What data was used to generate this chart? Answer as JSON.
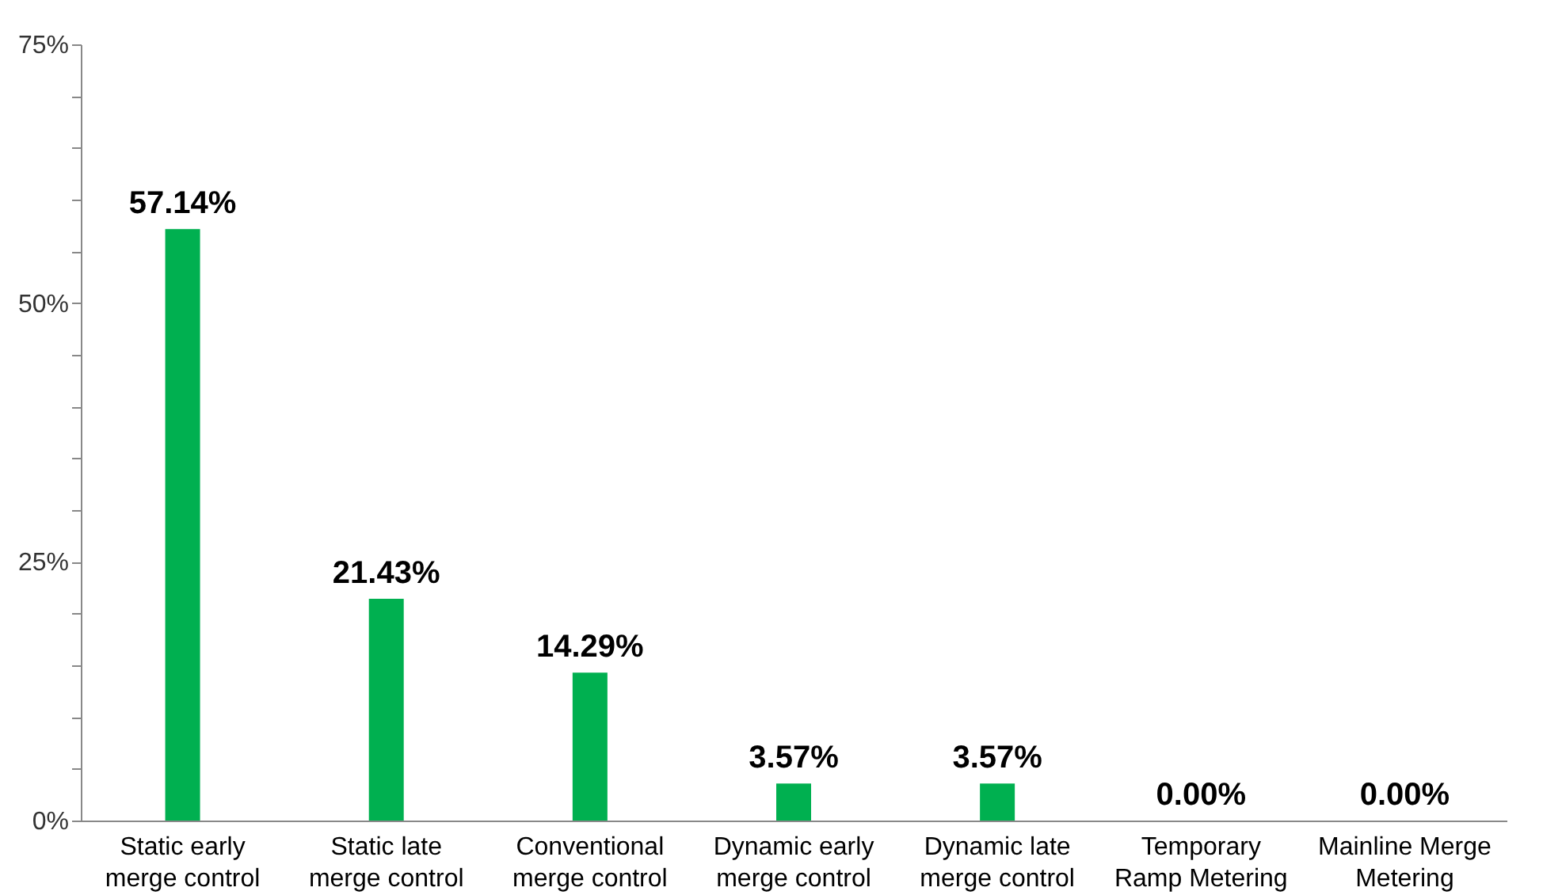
{
  "chart_data": {
    "type": "bar",
    "categories": [
      "Static early merge control",
      "Static late merge control",
      "Conventional merge control",
      "Dynamic early merge control",
      "Dynamic late merge control",
      "Temporary Ramp Metering",
      "Mainline Merge Metering"
    ],
    "values": [
      57.14,
      21.43,
      14.29,
      3.57,
      3.57,
      0,
      0
    ],
    "value_labels": [
      "57.14%",
      "21.43%",
      "14.29%",
      "3.57%",
      "3.57%",
      "0.00%",
      "0.00%"
    ],
    "color": "#00b050",
    "ylim": [
      0,
      75
    ],
    "yticks": [
      {
        "value": 0,
        "label": "0%"
      },
      {
        "value": 5,
        "label": null
      },
      {
        "value": 10,
        "label": null
      },
      {
        "value": 15,
        "label": null
      },
      {
        "value": 20,
        "label": null
      },
      {
        "value": 25,
        "label": "25%"
      },
      {
        "value": 30,
        "label": null
      },
      {
        "value": 35,
        "label": null
      },
      {
        "value": 40,
        "label": null
      },
      {
        "value": 45,
        "label": null
      },
      {
        "value": 50,
        "label": "50%"
      },
      {
        "value": 55,
        "label": null
      },
      {
        "value": 60,
        "label": null
      },
      {
        "value": 65,
        "label": null
      },
      {
        "value": 70,
        "label": null
      },
      {
        "value": 75,
        "label": "75%"
      }
    ],
    "grid": false
  }
}
